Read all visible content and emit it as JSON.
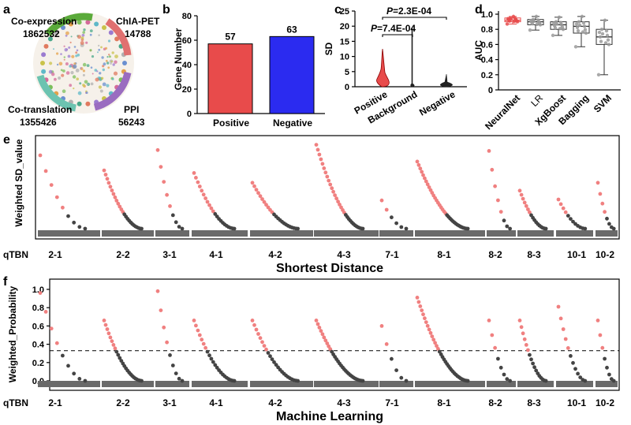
{
  "panel_labels": [
    "a",
    "b",
    "c",
    "d",
    "e",
    "f"
  ],
  "colors": {
    "positive": "#e84b4b",
    "negative": "#2b2bf0",
    "pink": "#f08080",
    "dark": "#444444",
    "bar_gray": "#6a6a6a",
    "green": "#5aaa3a",
    "teal": "#6cc3b0",
    "red": "#e07070",
    "purple": "#9a6cc0"
  },
  "panel_a": {
    "networks": [
      {
        "name": "Co-expression",
        "count": "1862532"
      },
      {
        "name": "ChIA-PET",
        "count": "14788"
      },
      {
        "name": "Co-translation",
        "count": "1355426"
      },
      {
        "name": "PPI",
        "count": "56243"
      }
    ]
  },
  "chart_data": [
    {
      "id": "b",
      "type": "bar",
      "ylabel": "Gene Number",
      "categories": [
        "Positive",
        "Negative"
      ],
      "values": [
        57,
        63
      ],
      "ylim": [
        0,
        80
      ],
      "yticks": [
        0,
        20,
        40,
        60,
        80
      ]
    },
    {
      "id": "c",
      "type": "violin",
      "ylabel": "SD",
      "categories": [
        "Positive",
        "Background",
        "Negative"
      ],
      "ylim": [
        0,
        25
      ],
      "yticks": [
        0,
        5,
        10,
        15,
        20,
        25
      ],
      "annotations": [
        {
          "prefix": "P",
          "text": "=2.3E-04"
        },
        {
          "prefix": "P",
          "text": "=7.4E-04"
        }
      ]
    },
    {
      "id": "d",
      "type": "box",
      "ylabel": "AUC",
      "categories": [
        "NeuralNet",
        "LR",
        "XgBoost",
        "Bagging",
        "SVM"
      ],
      "ylim": [
        0,
        1.0
      ],
      "yticks": [
        "0",
        "0.2",
        "0.4",
        "0.6",
        "0.8",
        "1.0"
      ],
      "boxes": [
        {
          "min": 0.87,
          "q1": 0.9,
          "median": 0.92,
          "q3": 0.95,
          "max": 0.97
        },
        {
          "min": 0.79,
          "q1": 0.86,
          "median": 0.9,
          "q3": 0.93,
          "max": 0.97
        },
        {
          "min": 0.72,
          "q1": 0.8,
          "median": 0.86,
          "q3": 0.9,
          "max": 0.96
        },
        {
          "min": 0.57,
          "q1": 0.75,
          "median": 0.84,
          "q3": 0.9,
          "max": 0.97
        },
        {
          "min": 0.2,
          "q1": 0.6,
          "median": 0.7,
          "q3": 0.8,
          "max": 0.92
        }
      ]
    },
    {
      "id": "e",
      "type": "scatter",
      "ylabel": "Weighted SD_value",
      "xlabel": "Shortest Distance",
      "row_label": "qTBN",
      "groups": [
        "2-1",
        "2-2",
        "3-1",
        "4-1",
        "4-2",
        "4-3",
        "7-1",
        "8-1",
        "8-2",
        "8-3",
        "10-1",
        "10-2"
      ],
      "ymax": [
        8.3,
        6.6,
        8.9,
        6.3,
        5.2,
        9.5,
        3.2,
        7.6,
        8.8,
        4.3,
        3.3,
        5.2
      ]
    },
    {
      "id": "f",
      "type": "scatter",
      "ylabel": "Weighted_Probability",
      "xlabel": "Machine Learning",
      "row_label": "qTBN",
      "threshold": 0.33,
      "yticks": [
        "0.0",
        "0.2",
        "0.4",
        "0.6",
        "0.8",
        "1.0"
      ],
      "groups": [
        "2-1",
        "2-2",
        "3-1",
        "4-1",
        "4-2",
        "4-3",
        "7-1",
        "8-1",
        "8-2",
        "8-3",
        "10-1",
        "10-2"
      ],
      "ymax": [
        0.96,
        0.66,
        0.98,
        0.66,
        0.66,
        0.66,
        0.6,
        0.91,
        0.66,
        0.66,
        0.81,
        0.66
      ]
    }
  ]
}
